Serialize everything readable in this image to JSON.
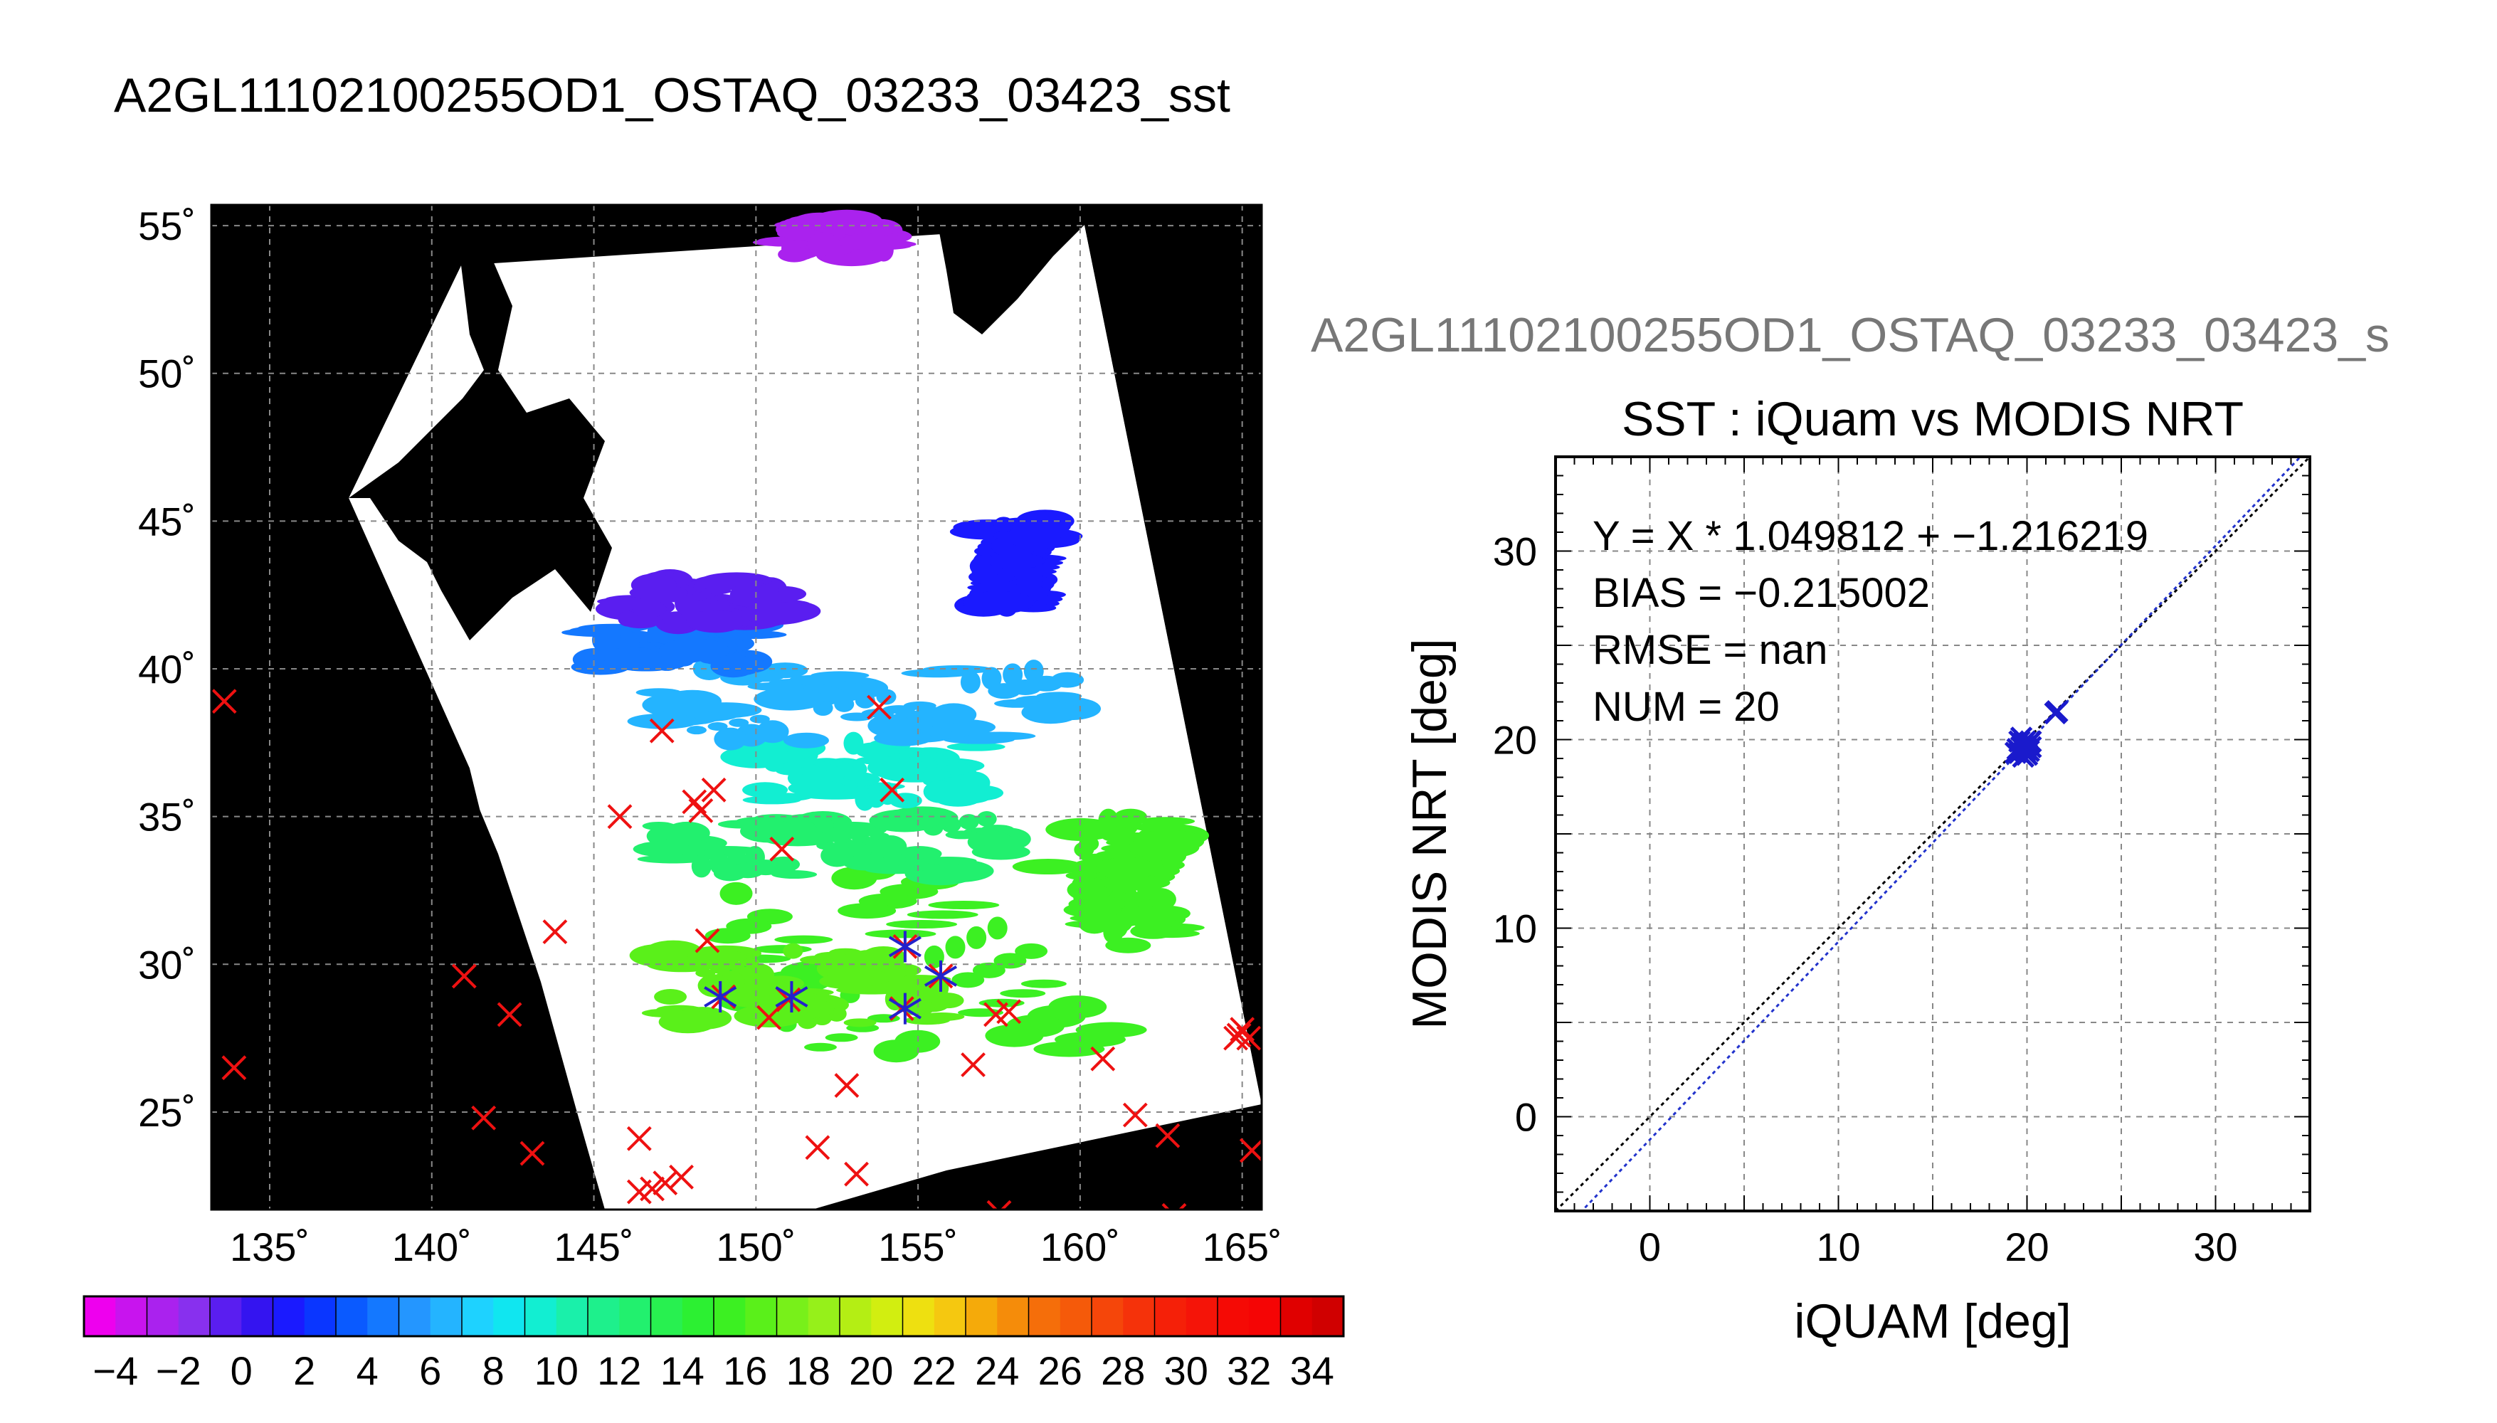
{
  "main_title": "A2GL11102100255OD1_OSTAQ_03233_03423_sst",
  "sub_title": "A2GL11102100255OD1_OSTAQ_03233_03423_s",
  "colors": {
    "land": "#000000",
    "cloud": "#ffffff",
    "buoy_marker": "#ee1111",
    "matched_marker": "#2222cc",
    "fit_line": "#2233cc",
    "grid": "#888888"
  },
  "chart_data": [
    {
      "type": "map",
      "lon_ticks": [
        135,
        140,
        145,
        150,
        155,
        160,
        165
      ],
      "lat_ticks": [
        25,
        30,
        35,
        40,
        45,
        50,
        55
      ],
      "lon_labels": [
        "135˚",
        "140˚",
        "145˚",
        "150˚",
        "155˚",
        "160˚",
        "165˚"
      ],
      "lat_labels": [
        "25˚",
        "30˚",
        "35˚",
        "40˚",
        "45˚",
        "50˚",
        "55˚"
      ],
      "lon_range": [
        133.2,
        165.6
      ],
      "lat_range": [
        21.7,
        55.7
      ],
      "colorbar": {
        "min": -5,
        "max": 35,
        "step": 1,
        "tick_values": [
          -4,
          -2,
          0,
          2,
          4,
          6,
          8,
          10,
          12,
          14,
          16,
          18,
          20,
          22,
          24,
          26,
          28,
          30,
          32,
          34
        ],
        "tick_labels": [
          "−4",
          "−2",
          "0",
          "2",
          "4",
          "6",
          "8",
          "10",
          "12",
          "14",
          "16",
          "18",
          "20",
          "22",
          "24",
          "26",
          "28",
          "30",
          "32",
          "34"
        ],
        "colors": [
          "#ee00ee",
          "#c814ee",
          "#aa22ee",
          "#8830ee",
          "#5a1ef0",
          "#3414f0",
          "#1a1aff",
          "#0a36ff",
          "#0a5aff",
          "#1478ff",
          "#2496ff",
          "#24b4ff",
          "#1ed2ff",
          "#10e6f0",
          "#12eed2",
          "#1af0aa",
          "#1ef08c",
          "#22f06e",
          "#28f050",
          "#2cf032",
          "#3cf022",
          "#5af01a",
          "#78f01a",
          "#96f01a",
          "#b4ee14",
          "#d2ee10",
          "#eee010",
          "#f5c810",
          "#f5aa0a",
          "#f58c0a",
          "#f56e0a",
          "#f55a0a",
          "#f5460a",
          "#f5320a",
          "#f52008",
          "#f51408",
          "#f50a05",
          "#f50505",
          "#e00000",
          "#d00000"
        ]
      },
      "buoys": [
        [
          133.6,
          38.9
        ],
        [
          133.9,
          26.5
        ],
        [
          141.0,
          29.6
        ],
        [
          141.6,
          24.8
        ],
        [
          142.4,
          28.3
        ],
        [
          143.1,
          23.6
        ],
        [
          143.8,
          31.1
        ],
        [
          145.8,
          35.0
        ],
        [
          146.4,
          24.1
        ],
        [
          146.4,
          22.3
        ],
        [
          146.8,
          22.4
        ],
        [
          147.1,
          37.9
        ],
        [
          147.2,
          22.6
        ],
        [
          147.7,
          22.8
        ],
        [
          148.1,
          35.5
        ],
        [
          148.3,
          35.2
        ],
        [
          148.5,
          30.8
        ],
        [
          148.7,
          35.9
        ],
        [
          149.0,
          28.9
        ],
        [
          150.4,
          28.2
        ],
        [
          150.8,
          33.9
        ],
        [
          151.0,
          28.8
        ],
        [
          151.9,
          23.8
        ],
        [
          152.8,
          25.9
        ],
        [
          153.1,
          22.9
        ],
        [
          153.8,
          38.7
        ],
        [
          154.2,
          35.9
        ],
        [
          154.5,
          28.5
        ],
        [
          154.6,
          30.6
        ],
        [
          155.7,
          29.6
        ],
        [
          156.7,
          26.6
        ],
        [
          157.4,
          28.3
        ],
        [
          157.8,
          28.4
        ],
        [
          157.5,
          21.6
        ],
        [
          160.7,
          26.8
        ],
        [
          161.7,
          24.9
        ],
        [
          162.7,
          24.2
        ],
        [
          162.9,
          21.5
        ],
        [
          164.8,
          27.5
        ],
        [
          164.9,
          27.6
        ],
        [
          165.0,
          27.8
        ],
        [
          165.2,
          27.5
        ],
        [
          165.3,
          23.7
        ]
      ],
      "matched": [
        [
          148.9,
          28.9
        ],
        [
          151.1,
          28.9
        ],
        [
          154.6,
          30.6
        ],
        [
          154.6,
          28.5
        ],
        [
          155.7,
          29.6
        ]
      ]
    },
    {
      "type": "scatter",
      "title": "SST : iQuam vs MODIS NRT",
      "xlabel": "iQUAM [deg]",
      "ylabel": "MODIS NRT [deg]",
      "xlim": [
        -5,
        35
      ],
      "ylim": [
        -5,
        35
      ],
      "x_ticks": [
        0,
        10,
        20,
        30
      ],
      "y_ticks": [
        0,
        10,
        20,
        30
      ],
      "grid": true,
      "annotations": [
        "Y = X * 1.049812 + −1.216219",
        "BIAS = −0.215002",
        "RMSE = nan",
        "NUM = 20"
      ],
      "fit": {
        "slope": 1.049812,
        "intercept": -1.216219
      },
      "points": [
        {
          "x": 19.6,
          "y": 19.3
        },
        {
          "x": 19.8,
          "y": 19.6
        },
        {
          "x": 20.0,
          "y": 19.2
        },
        {
          "x": 19.7,
          "y": 20.1
        },
        {
          "x": 20.1,
          "y": 19.8
        },
        {
          "x": 19.5,
          "y": 19.5
        },
        {
          "x": 19.9,
          "y": 19.4
        },
        {
          "x": 20.2,
          "y": 19.6
        },
        {
          "x": 19.6,
          "y": 19.9
        },
        {
          "x": 20.0,
          "y": 19.7
        },
        {
          "x": 19.8,
          "y": 19.1
        },
        {
          "x": 19.7,
          "y": 19.6
        },
        {
          "x": 20.1,
          "y": 19.4
        },
        {
          "x": 19.9,
          "y": 19.9
        },
        {
          "x": 19.4,
          "y": 19.3
        },
        {
          "x": 20.0,
          "y": 19.5
        },
        {
          "x": 19.8,
          "y": 19.8
        },
        {
          "x": 20.2,
          "y": 19.9
        },
        {
          "x": 21.5,
          "y": 21.4
        },
        {
          "x": 21.6,
          "y": 21.5
        }
      ]
    }
  ]
}
